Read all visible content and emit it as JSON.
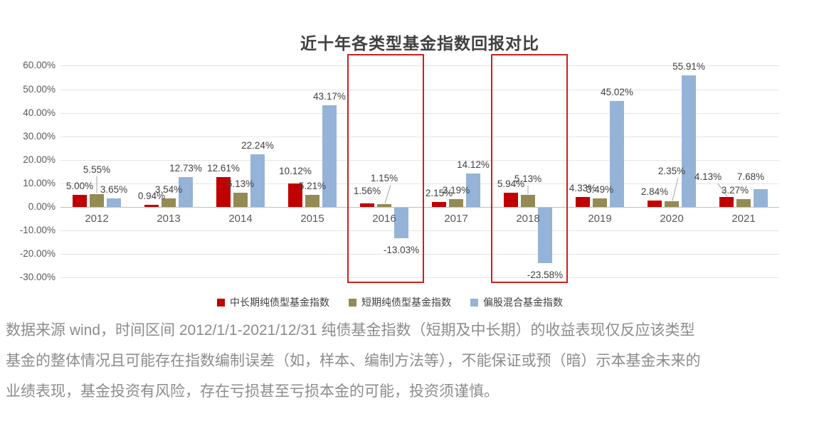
{
  "page": {
    "disclaimer_lines": [
      "数据来源 wind，时间区间 2012/1/1-2021/12/31 纯债基金指数（短期及中长期）的收益表现仅反应该类型",
      "基金的整体情况且可能存在指数编制误差（如，样本、编制方法等），不能保证或预（暗）示本基金未来的",
      "业绩表现，基金投资有风险，存在亏损甚至亏损本金的可能，投资须谨慎。"
    ]
  },
  "chart_data": {
    "type": "bar",
    "title": "近十年各类型基金指数回报对比",
    "categories": [
      "2012",
      "2013",
      "2014",
      "2015",
      "2016",
      "2017",
      "2018",
      "2019",
      "2020",
      "2021"
    ],
    "series": [
      {
        "name": "中长期纯债型基金指数",
        "color": "#C00000",
        "values": [
          5.0,
          0.94,
          12.61,
          10.12,
          1.56,
          2.15,
          5.94,
          4.33,
          2.84,
          4.13
        ]
      },
      {
        "name": "短期纯债型基金指数",
        "color": "#948A54",
        "values": [
          5.55,
          3.54,
          6.13,
          5.21,
          1.15,
          3.19,
          5.13,
          3.49,
          2.35,
          3.27
        ]
      },
      {
        "name": "偏股混合基金指数",
        "color": "#95B3D7",
        "values": [
          3.65,
          12.73,
          22.24,
          43.17,
          -13.03,
          14.12,
          -23.58,
          45.02,
          55.91,
          7.68
        ]
      }
    ],
    "y_axis": {
      "ticks": [
        "60.00%",
        "50.00%",
        "40.00%",
        "30.00%",
        "20.00%",
        "10.00%",
        "0.00%",
        "-10.00%",
        "-20.00%",
        "-30.00%"
      ],
      "max": 60,
      "min": -30,
      "step": 10
    },
    "ylim": [
      -30,
      60
    ],
    "grid": true,
    "data_labels": true,
    "label_format": "0.00%",
    "legend_position": "bottom",
    "highlighted_categories": [
      "2016",
      "2018"
    ],
    "annotation_color": "#CB2020",
    "label_hints": {
      "2012_1": {
        "dy": -22,
        "leader": "v"
      },
      "2015_0": {
        "dy": -5
      },
      "2016_0": {
        "dy": -5
      },
      "2016_1": {
        "dy": -24,
        "leader": "d"
      },
      "2018_1": {
        "dy": -10,
        "leader": "v"
      },
      "2020_1": {
        "dy": -30,
        "leader": "d"
      },
      "2021_0": {
        "dx": -26,
        "dy": -16,
        "leader": "d"
      },
      "2021_1": {
        "dx": -12
      },
      "2021_2": {
        "dx": -14,
        "dy": -5
      }
    }
  }
}
